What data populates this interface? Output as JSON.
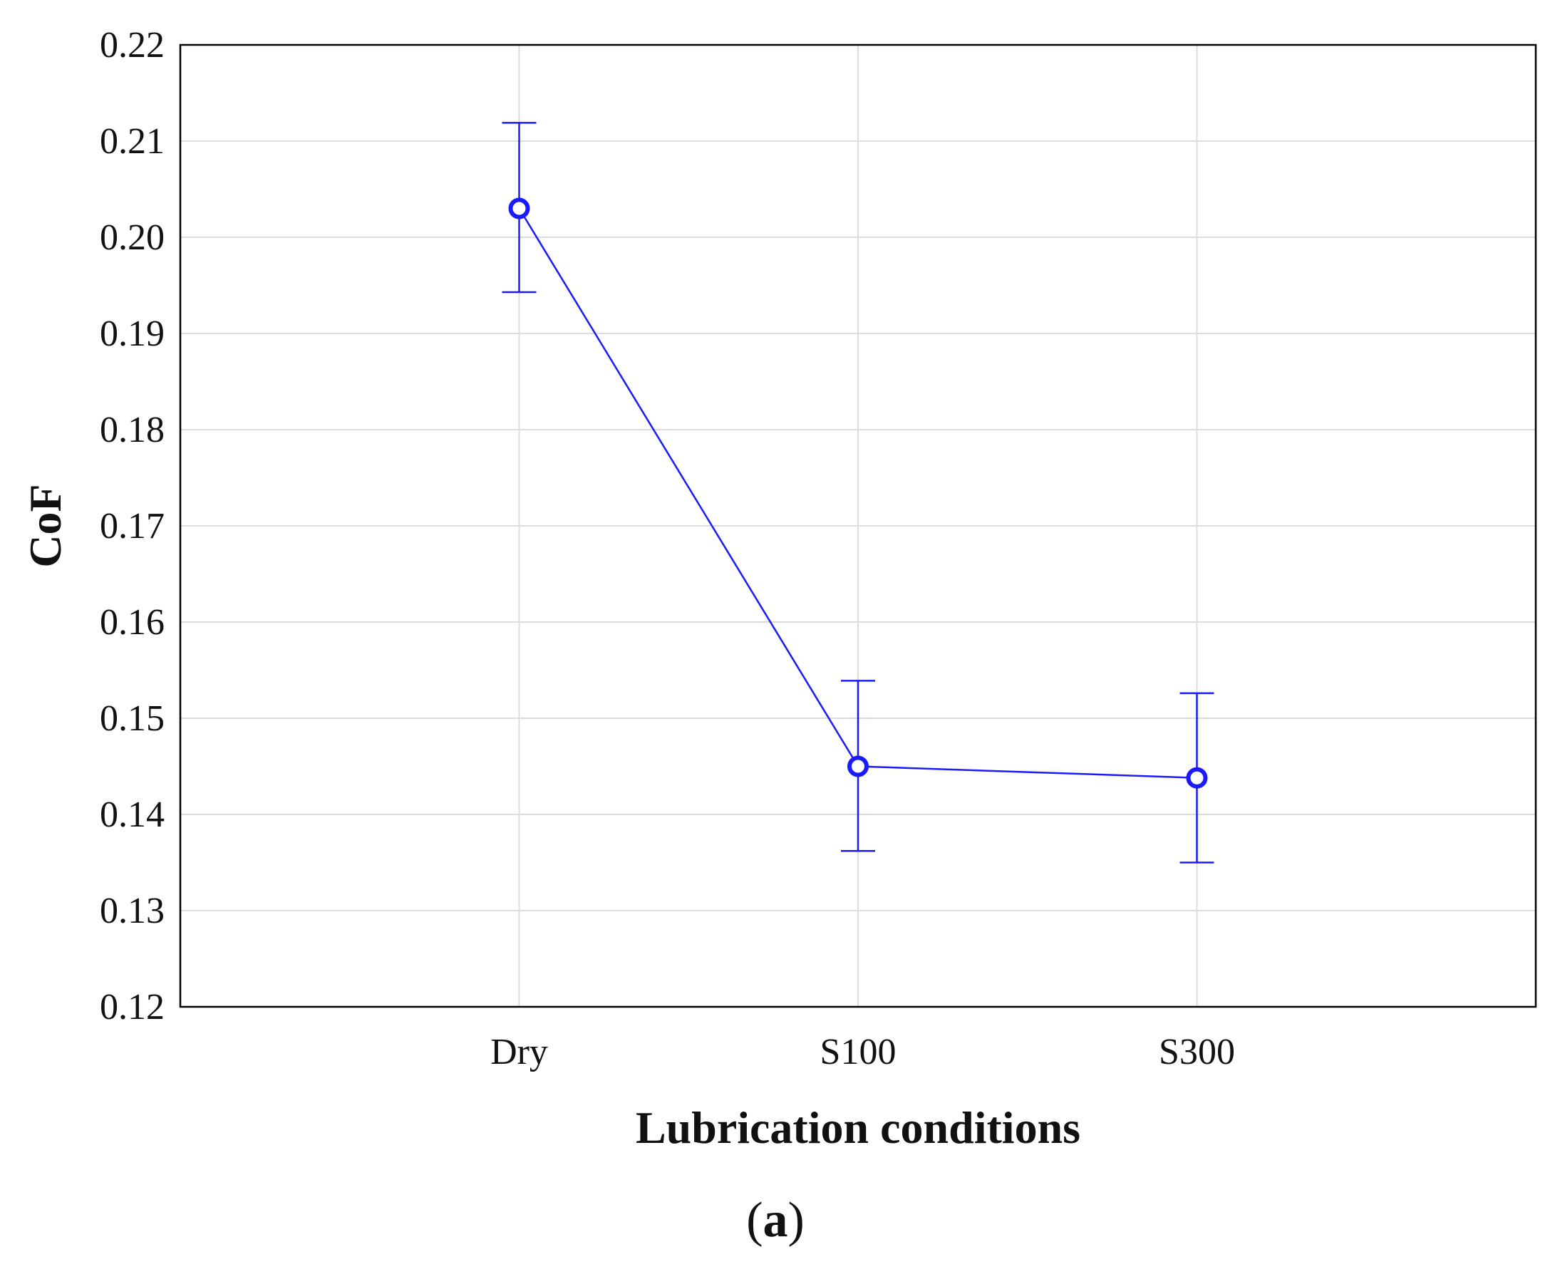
{
  "chart_data": {
    "type": "line",
    "title": "",
    "xlabel": "Lubrication conditions",
    "ylabel": "CoF",
    "categories": [
      "Dry",
      "S100",
      "S300"
    ],
    "series": [
      {
        "name": "CoF",
        "values": [
          0.203,
          0.145,
          0.1438
        ],
        "error_low": [
          0.1943,
          0.1362,
          0.135
        ],
        "error_high": [
          0.2119,
          0.1539,
          0.1526
        ],
        "marker": "open-circle"
      }
    ],
    "ylim": [
      0.12,
      0.22
    ],
    "yticks": [
      "0.12",
      "0.13",
      "0.14",
      "0.15",
      "0.16",
      "0.17",
      "0.18",
      "0.19",
      "0.20",
      "0.21",
      "0.22"
    ],
    "grid": true,
    "legend": "none",
    "panel_label": {
      "open": "(",
      "letter": "a",
      "close": ")"
    },
    "colors": {
      "series": "#1a1aff",
      "grid": "#dcdcdc",
      "frame": "#000000"
    }
  }
}
